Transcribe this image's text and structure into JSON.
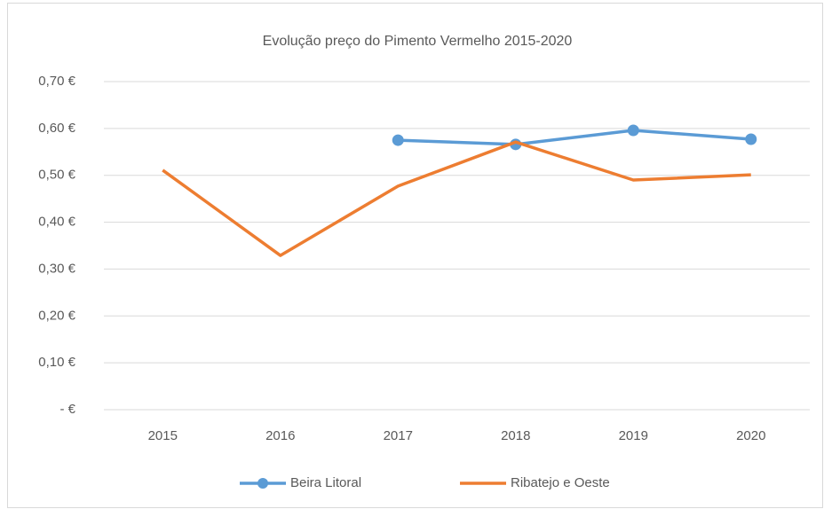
{
  "chart_data": {
    "type": "line",
    "title": "Evolução preço do Pimento Vermelho 2015-2020",
    "categories": [
      "2015",
      "2016",
      "2017",
      "2018",
      "2019",
      "2020"
    ],
    "series": [
      {
        "name": "Beira Litoral",
        "color": "#5b9bd5",
        "values": [
          null,
          null,
          0.575,
          0.566,
          0.596,
          0.577
        ],
        "markers": true
      },
      {
        "name": "Ribatejo e Oeste",
        "color": "#ed7d31",
        "values": [
          0.511,
          0.329,
          0.477,
          0.571,
          0.49,
          0.501
        ],
        "markers": false
      }
    ],
    "ylim": [
      0,
      0.7
    ],
    "yticks": [
      {
        "value": 0,
        "label": "-  €"
      },
      {
        "value": 0.1,
        "label": "0,10 €"
      },
      {
        "value": 0.2,
        "label": "0,20 €"
      },
      {
        "value": 0.3,
        "label": "0,30 €"
      },
      {
        "value": 0.4,
        "label": "0,40 €"
      },
      {
        "value": 0.5,
        "label": "0,50 €"
      },
      {
        "value": 0.6,
        "label": "0,60 €"
      },
      {
        "value": 0.7,
        "label": "0,70 €"
      }
    ],
    "grid": true,
    "legend": "bottom"
  }
}
